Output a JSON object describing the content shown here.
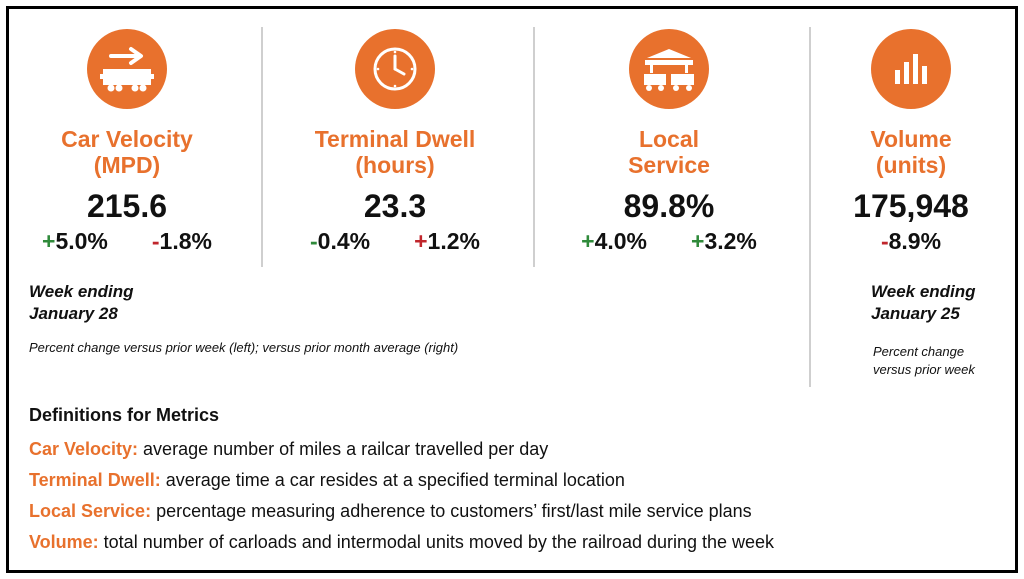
{
  "colors": {
    "accent": "#e8712d",
    "positive": "#2f8a3a",
    "negative": "#c0262c"
  },
  "metrics": [
    {
      "icon": "railcar-arrow-icon",
      "title_line1": "Car Velocity",
      "title_line2": "(MPD)",
      "value": "215.6",
      "change_left_sign": "+",
      "change_left_value": "5.0%",
      "change_right_sign": "-",
      "change_right_value": "1.8%"
    },
    {
      "icon": "clock-icon",
      "title_line1": "Terminal Dwell",
      "title_line2": "(hours)",
      "value": "23.3",
      "change_left_sign": "-",
      "change_left_value": "0.4%",
      "change_right_sign": "+",
      "change_right_value": "1.2%"
    },
    {
      "icon": "terminal-building-icon",
      "title_line1": "Local",
      "title_line2": "Service",
      "value": "89.8%",
      "change_left_sign": "+",
      "change_left_value": "4.0%",
      "change_right_sign": "+",
      "change_right_value": "3.2%"
    },
    {
      "icon": "bar-chart-icon",
      "title_line1": "Volume",
      "title_line2": "(units)",
      "value": "175,948",
      "change_sign": "-",
      "change_value": "8.9%"
    }
  ],
  "week_left": {
    "line1": "Week ending",
    "line2": "January 28"
  },
  "note_left": "Percent change versus prior week (left); versus prior month average (right)",
  "week_right": {
    "line1": "Week ending",
    "line2": "January 25"
  },
  "note_right": {
    "line1": "Percent change",
    "line2": "versus prior week"
  },
  "definitions": {
    "title": "Definitions for Metrics",
    "items": [
      {
        "term": "Car Velocity:",
        "text": " average number of miles a railcar travelled per day"
      },
      {
        "term": "Terminal Dwell:",
        "text": " average time a car resides at a specified terminal location"
      },
      {
        "term": "Local Service:",
        "text": " percentage measuring adherence to customers’ first/last mile service plans"
      },
      {
        "term": "Volume:",
        "text": " total number of carloads and intermodal units moved by the railroad during the week"
      }
    ]
  }
}
